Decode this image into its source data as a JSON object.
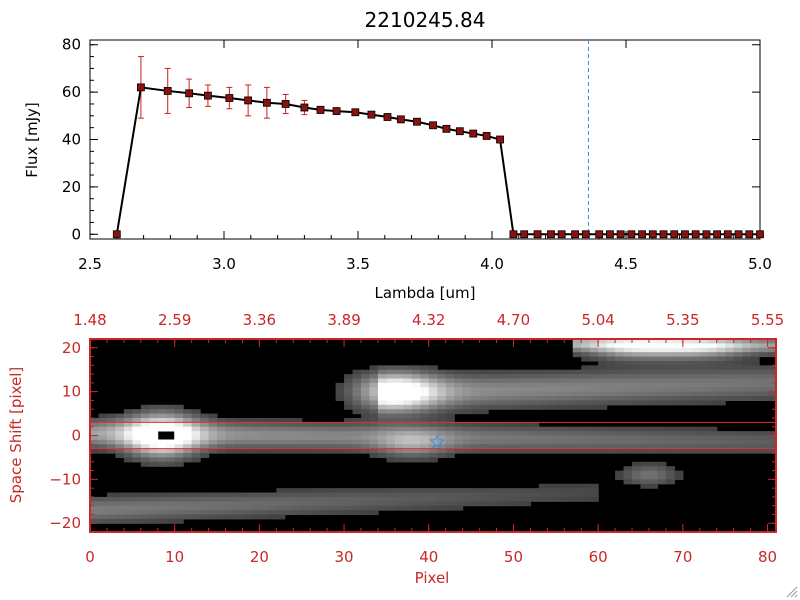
{
  "chart_data": [
    {
      "type": "line",
      "title": "2210245.84",
      "xlabel": "Lambda [um]",
      "ylabel": "Flux [mJy]",
      "xlim": [
        2.5,
        5.0
      ],
      "ylim": [
        -2,
        82
      ],
      "x_ticks": [
        2.5,
        3.0,
        3.5,
        4.0,
        4.5,
        5.0
      ],
      "x_tick_labels": [
        "2.5",
        "3.0",
        "3.5",
        "4.0",
        "4.5",
        "5.0"
      ],
      "y_ticks": [
        0,
        20,
        40,
        60,
        80
      ],
      "y_tick_labels": [
        "0",
        "20",
        "40",
        "60",
        "80"
      ],
      "line_color": "#000000",
      "marker_color": "#8b1010",
      "errorbar_color": "#cc2020",
      "vline_x": 4.36,
      "vline_color": "#3a8ee0",
      "series": [
        {
          "x": [
            2.6,
            2.69,
            2.79,
            2.87,
            2.94,
            3.02,
            3.09,
            3.16,
            3.23,
            3.3,
            3.36,
            3.42,
            3.49,
            3.55,
            3.61,
            3.66,
            3.72,
            3.78,
            3.83,
            3.88,
            3.93,
            3.98,
            4.03,
            4.08,
            4.12,
            4.17,
            4.22,
            4.26,
            4.31,
            4.35,
            4.4,
            4.44,
            4.48,
            4.52,
            4.56,
            4.6,
            4.64,
            4.68,
            4.72,
            4.76,
            4.8,
            4.84,
            4.88,
            4.92,
            4.96,
            5.0
          ],
          "y": [
            0,
            62,
            60.5,
            59.5,
            58.5,
            57.5,
            56.5,
            55.5,
            55,
            53.5,
            52.5,
            52,
            51.5,
            50.5,
            49.5,
            48.5,
            47.5,
            46,
            44.5,
            43.5,
            42.5,
            41.5,
            40,
            0,
            0,
            0,
            0,
            0,
            0,
            0,
            0,
            0,
            0,
            0,
            0,
            0,
            0,
            0,
            0,
            0,
            0,
            0,
            0,
            0,
            0,
            0
          ],
          "err": [
            0,
            13,
            9.5,
            6,
            4.5,
            4.5,
            6.5,
            6.5,
            4,
            3,
            1.5,
            1,
            1,
            0.8,
            0.8,
            0.8,
            0.8,
            0.8,
            0.8,
            0.8,
            0.8,
            0.8,
            0.8,
            0,
            0,
            0,
            0,
            0,
            0,
            0,
            0,
            0,
            0,
            0,
            0,
            0,
            0,
            0,
            0,
            0,
            0,
            0,
            0,
            0,
            0,
            0
          ]
        }
      ]
    },
    {
      "type": "heatmap",
      "xlabel": "Pixel",
      "ylabel": "Space Shift [pixel]",
      "xlim": [
        0,
        81
      ],
      "ylim": [
        -22,
        22
      ],
      "x_ticks": [
        0,
        10,
        20,
        30,
        40,
        50,
        60,
        70,
        80
      ],
      "x_tick_labels": [
        "0",
        "10",
        "20",
        "30",
        "40",
        "50",
        "60",
        "70",
        "80"
      ],
      "top_axis_ticks": [
        0,
        10,
        20,
        30,
        40,
        50,
        60,
        70,
        80
      ],
      "top_axis_labels": [
        "1.48",
        "2.59",
        "3.36",
        "3.89",
        "4.32",
        "4.70",
        "5.04",
        "5.35",
        "5.55"
      ],
      "y_ticks": [
        -20,
        -10,
        0,
        10,
        20
      ],
      "y_tick_labels": [
        "−20",
        "−10",
        "0",
        "10",
        "20"
      ],
      "axis_color": "#c82828",
      "hlines": [
        3,
        -3
      ],
      "hline_color": "#e03030",
      "star_marker": {
        "x": 41,
        "y": -1.5,
        "color": "#3a8ee0"
      },
      "black_marker": {
        "x": 9,
        "y": 0
      },
      "colormap": "grayscale",
      "sources": [
        {
          "x": 8.5,
          "y": 0,
          "sx": 3,
          "sy": 3.5,
          "amp": 1.0
        },
        {
          "x": 36,
          "y": 10,
          "sx": 3.5,
          "sy": 3,
          "amp": 0.85
        },
        {
          "x": 38,
          "y": -2,
          "sx": 3,
          "sy": 2.5,
          "amp": 0.35
        },
        {
          "x": 66,
          "y": -9,
          "sx": 2.5,
          "sy": 1.8,
          "amp": 0.35
        },
        {
          "x": 64,
          "y": 20,
          "sx": 4,
          "sy": 2,
          "amp": 0.55
        },
        {
          "x": 72,
          "y": 20,
          "sx": 4,
          "sy": 2,
          "amp": 0.5
        }
      ],
      "streaks": [
        {
          "x0": 0,
          "y0": 0.5,
          "x1": 81,
          "y1": -1.5,
          "sy": 2.2,
          "amp0": 0.55,
          "amp1": 0.25
        },
        {
          "x0": 34,
          "y0": 9.5,
          "x1": 81,
          "y1": 12,
          "sy": 2.8,
          "amp0": 0.5,
          "amp1": 0.35
        },
        {
          "x0": 0,
          "y0": -17,
          "x1": 60,
          "y1": -13,
          "sy": 2.2,
          "amp0": 0.4,
          "amp1": 0.15
        },
        {
          "x0": 57,
          "y0": 21,
          "x1": 81,
          "y1": 20.5,
          "sy": 1.2,
          "amp0": 0.55,
          "amp1": 0.5
        }
      ]
    }
  ]
}
